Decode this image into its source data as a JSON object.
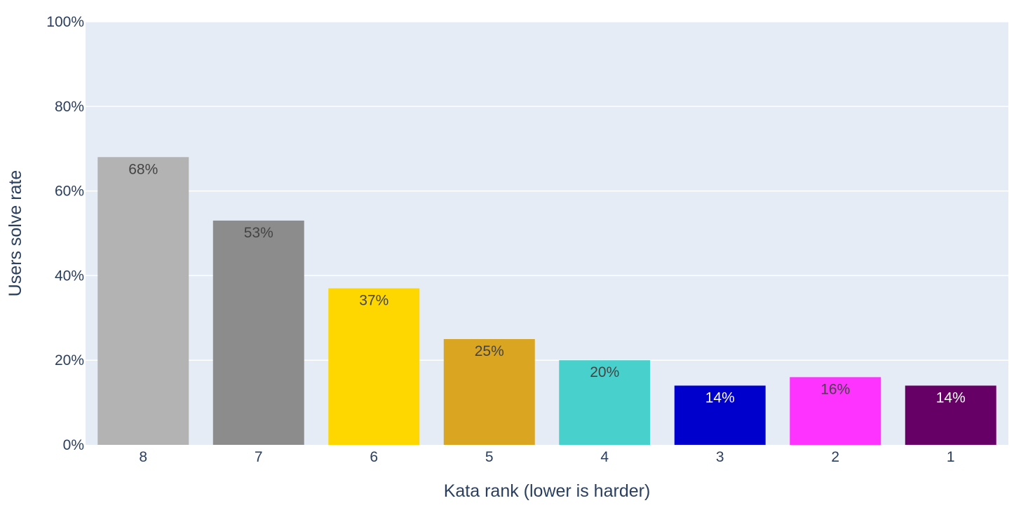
{
  "chart_data": {
    "type": "bar",
    "title": "",
    "xlabel": "Kata rank (lower is harder)",
    "ylabel": "Users solve rate",
    "ylim": [
      0,
      100
    ],
    "y_ticks": [
      "0%",
      "20%",
      "40%",
      "60%",
      "80%",
      "100%"
    ],
    "y_tick_values": [
      0,
      20,
      40,
      60,
      80,
      100
    ],
    "grid": true,
    "categories": [
      "8",
      "7",
      "6",
      "5",
      "4",
      "3",
      "2",
      "1"
    ],
    "values": [
      68,
      53,
      37,
      25,
      20,
      14,
      16,
      14
    ],
    "value_labels": [
      "68%",
      "53%",
      "37%",
      "25%",
      "20%",
      "14%",
      "16%",
      "14%"
    ],
    "colors": [
      "#b3b3b3",
      "#8c8c8c",
      "#ffd700",
      "#daa520",
      "#48d1cc",
      "#0000cd",
      "#ff33ff",
      "#660066"
    ],
    "label_colors": [
      "#444444",
      "#444444",
      "#444444",
      "#444444",
      "#444444",
      "#ffffff",
      "#444444",
      "#ffffff"
    ]
  }
}
